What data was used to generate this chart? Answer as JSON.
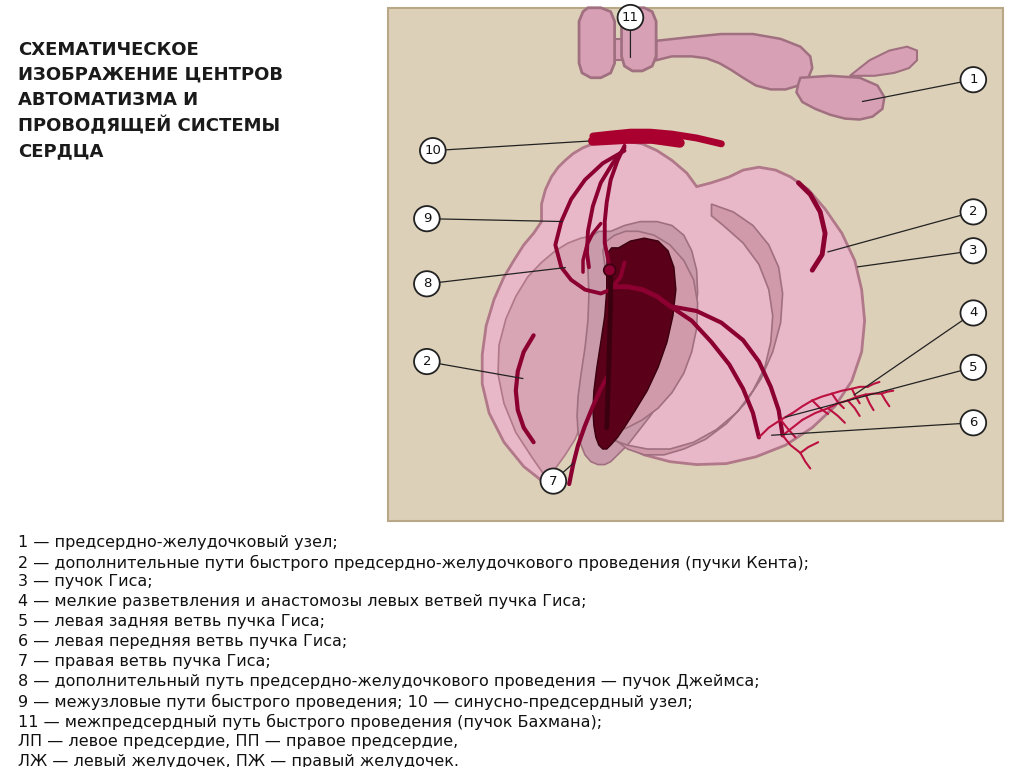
{
  "title_text": "СХЕМАТИЧЕСКОЕ\nИЗОБРАЖЕНИЕ ЦЕНТРОВ\nАВТОМАТИЗМА И\nПРОВОДЯЩЕЙ СИСТЕМЫ\nСЕРДЦА",
  "bg_color": "#ffffff",
  "diagram_bg": "#ddd0b8",
  "heart_light_pink": "#e8b8c8",
  "heart_mid_pink": "#d4909e",
  "heart_dark_pink": "#c07888",
  "dark_red": "#8b0030",
  "bright_red": "#aa0030",
  "vessel_pink": "#d8a0b5",
  "vessel_edge": "#a07080",
  "label_lines": [
    "1 — предсердно-желудочковый узел;",
    "2 — дополнительные пути быстрого предсердно-желудочкового проведения (пучки Кента);",
    "3 — пучок Гиса;",
    "4 — мелкие разветвления и анастомозы левых ветвей пучка Гиса;",
    "5 — левая задняя ветвь пучка Гиса;",
    "6 — левая передняя ветвь пучка Гиса;",
    "7 — правая ветвь пучка Гиса;",
    "8 — дополнительный путь предсердно-желудочкового проведения — пучок Джеймса;",
    "9 — межузловые пути быстрого проведения; 10 — синусно-предсердный узел;",
    "11 — межпредсердный путь быстрого проведения (пучок Бахмана);",
    "ЛП — левое предсердие, ПП — правое предсердие,",
    "ЛЖ — левый желудочек, ПЖ — правый желудочек."
  ]
}
